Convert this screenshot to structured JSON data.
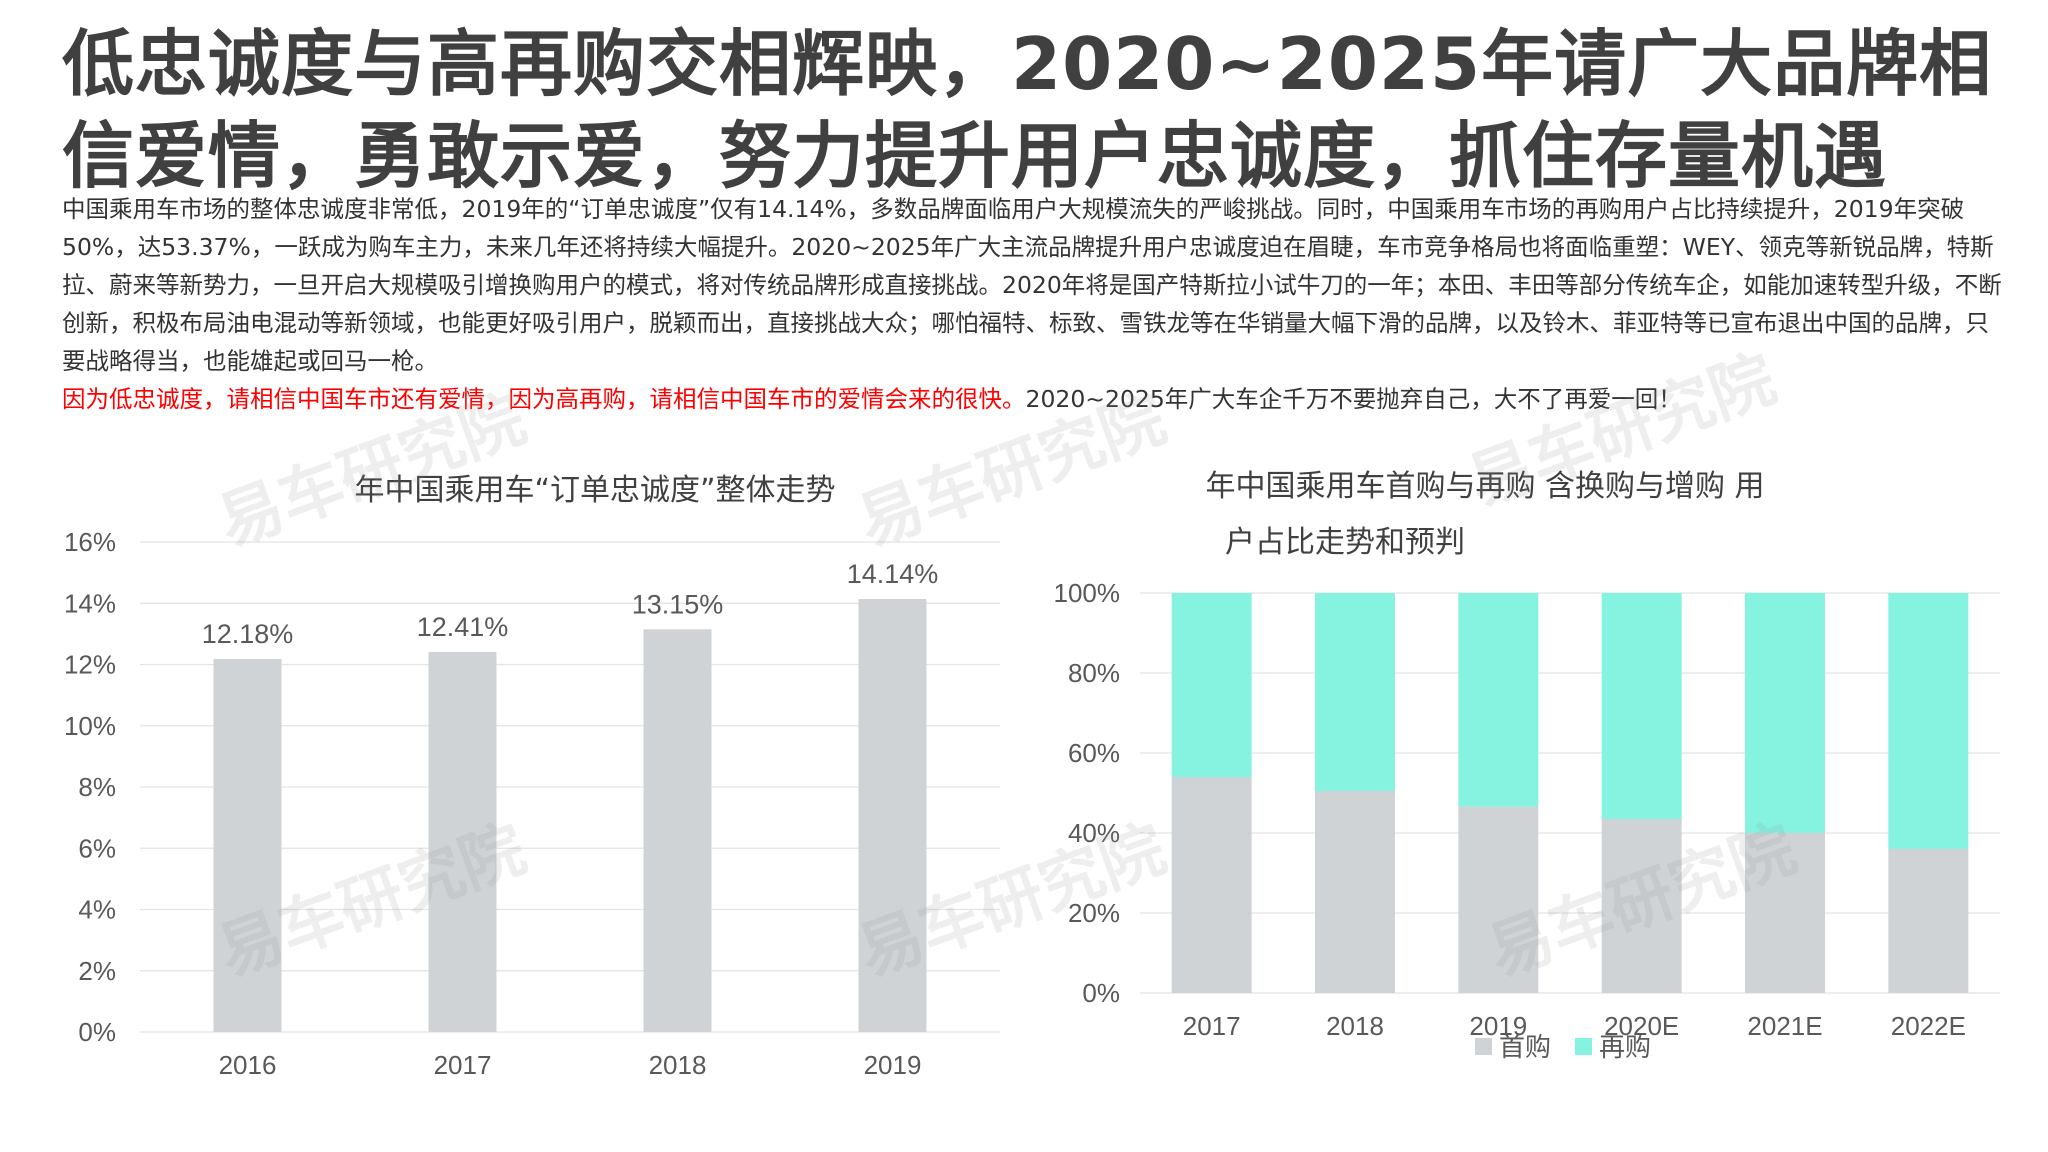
{
  "title": "低忠诚度与高再购交相辉映，2020~2025年请广大品牌相信爱情，勇敢示爱，努力提升用户忠诚度，抓住存量机遇",
  "body": {
    "paragraph": "中国乘用车市场的整体忠诚度非常低，2019年的“订单忠诚度”仅有14.14%，多数品牌面临用户大规模流失的严峻挑战。同时，中国乘用车市场的再购用户占比持续提升，2019年突破50%，达53.37%，一跃成为购车主力，未来几年还将持续大幅提升。2020~2025年广大主流品牌提升用户忠诚度迫在眉睫，车市竞争格局也将面临重塑：WEY、领克等新锐品牌，特斯拉、蔚来等新势力，一旦开启大规模吸引增换购用户的模式，将对传统品牌形成直接挑战。2020年将是国产特斯拉小试牛刀的一年；本田、丰田等部分传统车企，如能加速转型升级，不断创新，积极布局油电混动等新领域，也能更好吸引用户，脱颖而出，直接挑战大众；哪怕福特、标致、雪铁龙等在华销量大幅下滑的品牌，以及铃木、菲亚特等已宣布退出中国的品牌，只要战略得当，也能雄起或回马一枪。",
    "red": "因为低忠诚度，请相信中国车市还有爱情，因为高再购，请相信中国车市的爱情会来的很快。",
    "rest": "2020~2025年广大车企千万不要抛弃自己，大不了再爱一回！"
  },
  "watermark": "易车研究院",
  "chart_data": [
    {
      "type": "bar",
      "title": "年中国乘用车“订单忠诚度”整体走势",
      "categories": [
        "2016",
        "2017",
        "2018",
        "2019"
      ],
      "values": [
        12.18,
        12.41,
        13.15,
        14.14
      ],
      "labels": [
        "12.18%",
        "12.41%",
        "13.15%",
        "14.14%"
      ],
      "ylim": [
        0,
        16
      ],
      "yticks": [
        "0%",
        "2%",
        "4%",
        "6%",
        "8%",
        "10%",
        "12%",
        "14%",
        "16%"
      ],
      "color": "#d0d3d6",
      "grid": true
    },
    {
      "type": "bar",
      "stacked": true,
      "title_lines": [
        "年中国乘用车首购与再购 含换购与增购 用",
        "户占比走势和预判"
      ],
      "categories": [
        "2017",
        "2018",
        "2019",
        "2020E",
        "2021E",
        "2022E"
      ],
      "series": [
        {
          "name": "首购",
          "color": "#d0d3d6",
          "values": [
            54,
            50.5,
            46.6,
            43.5,
            40,
            36
          ]
        },
        {
          "name": "再购",
          "color": "#86f2e0",
          "values": [
            46,
            49.5,
            53.4,
            56.5,
            60,
            64
          ]
        }
      ],
      "ylim": [
        0,
        100
      ],
      "yticks": [
        "0%",
        "20%",
        "40%",
        "60%",
        "80%",
        "100%"
      ],
      "legend": "bottom",
      "grid": true
    }
  ]
}
